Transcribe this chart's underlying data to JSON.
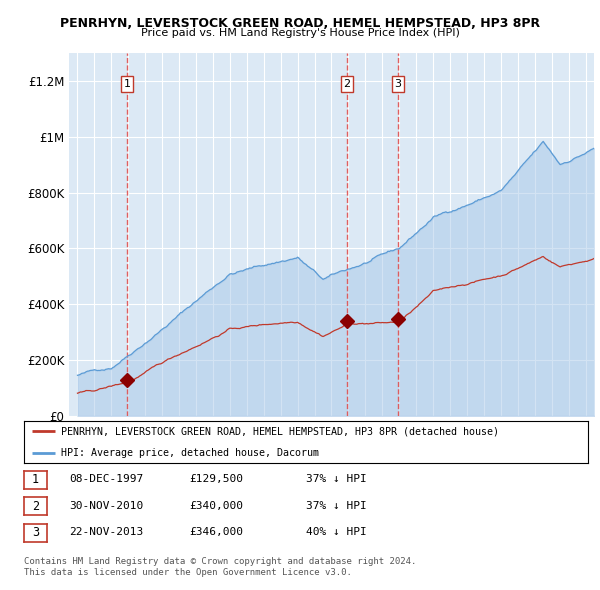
{
  "title1": "PENRHYN, LEVERSTOCK GREEN ROAD, HEMEL HEMPSTEAD, HP3 8PR",
  "title2": "Price paid vs. HM Land Registry's House Price Index (HPI)",
  "background_color": "#dce9f5",
  "red_line_label": "PENRHYN, LEVERSTOCK GREEN ROAD, HEMEL HEMPSTEAD, HP3 8PR (detached house)",
  "blue_line_label": "HPI: Average price, detached house, Dacorum",
  "sale_points": [
    {
      "label": "1",
      "date_num": 1997.92,
      "price": 129500,
      "date_str": "08-DEC-1997",
      "pct": "37%",
      "dir": "↓"
    },
    {
      "label": "2",
      "date_num": 2010.92,
      "price": 340000,
      "date_str": "30-NOV-2010",
      "pct": "37%",
      "dir": "↓"
    },
    {
      "label": "3",
      "date_num": 2013.92,
      "price": 346000,
      "date_str": "22-NOV-2013",
      "pct": "40%",
      "dir": "↓"
    }
  ],
  "footer1": "Contains HM Land Registry data © Crown copyright and database right 2024.",
  "footer2": "This data is licensed under the Open Government Licence v3.0.",
  "ylim": [
    0,
    1300000
  ],
  "xlim_start": 1994.5,
  "xlim_end": 2025.5
}
